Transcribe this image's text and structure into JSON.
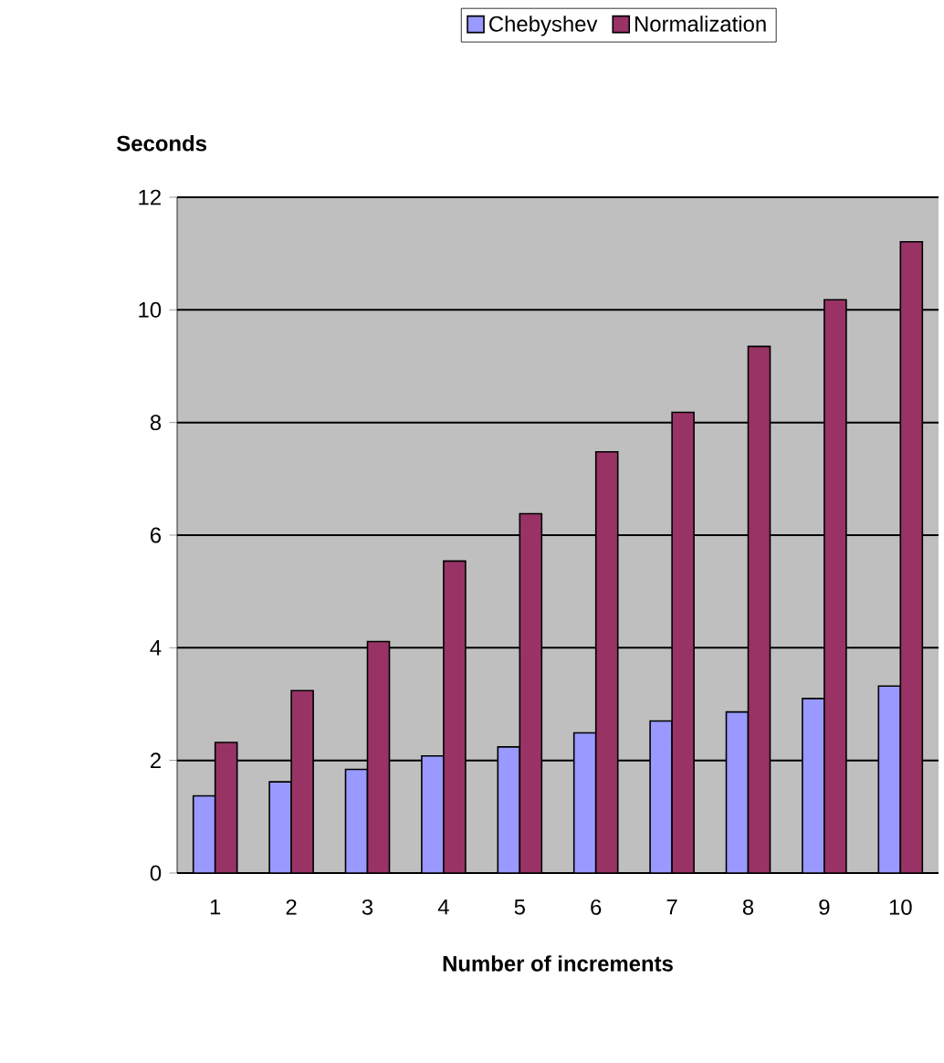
{
  "chart_data": {
    "type": "bar",
    "xlabel": "Number of increments",
    "ylabel": "Seconds",
    "categories": [
      "1",
      "2",
      "3",
      "4",
      "5",
      "6",
      "7",
      "8",
      "9",
      "10"
    ],
    "series": [
      {
        "name": "Chebyshev",
        "color": "#9999ff",
        "values": [
          1.37,
          1.62,
          1.84,
          2.08,
          2.24,
          2.49,
          2.7,
          2.86,
          3.1,
          3.32
        ]
      },
      {
        "name": "Normalization",
        "color": "#993366",
        "values": [
          2.32,
          3.24,
          4.11,
          5.54,
          6.38,
          7.48,
          8.18,
          9.35,
          10.18,
          11.21
        ]
      }
    ],
    "ylim": [
      0,
      12
    ],
    "yticks": [
      0,
      2,
      4,
      6,
      8,
      10,
      12
    ],
    "grid": "y",
    "legend": "top"
  }
}
